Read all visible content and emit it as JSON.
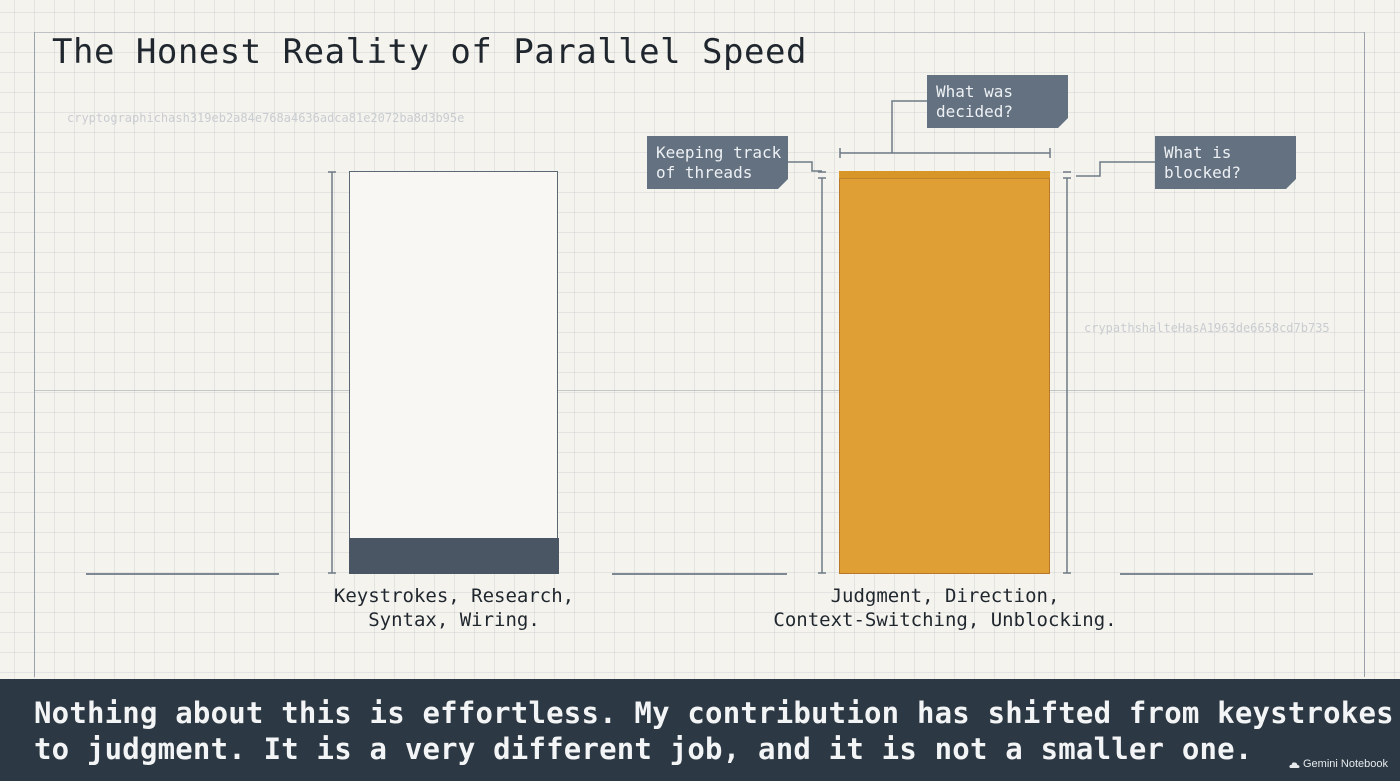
{
  "slide": {
    "title": "The Honest Reality of Parallel Speed",
    "watermarks": [
      "cryptographichash319eb2a84e768a4636adca81e2072ba8d3b95e",
      "crypathshalteHasA1963de6658cd7b735"
    ]
  },
  "bars": {
    "left": {
      "label_line1": "Keystrokes, Research,",
      "label_line2": "Syntax, Wiring.",
      "fill_fraction": 0.09,
      "fill_color": "#4a5663"
    },
    "right": {
      "label_line1": "Judgment, Direction,",
      "label_line2": "Context-Switching, Unblocking.",
      "fill_fraction": 1.0,
      "fill_color": "#e09f34"
    }
  },
  "callouts": {
    "threads_line1": "Keeping track",
    "threads_line2": "of threads",
    "decided_line1": "What was",
    "decided_line2": "decided?",
    "blocked_line1": "What is",
    "blocked_line2": "blocked?",
    "color": "#637180"
  },
  "caption": {
    "line1": "Nothing about this is effortless. My contribution has shifted from keystrokes",
    "line2": "to judgment. It is a very different job, and it is not a smaller one."
  },
  "branding": {
    "icon": "sparkle-cloud-icon",
    "label": "Gemini Notebook"
  }
}
